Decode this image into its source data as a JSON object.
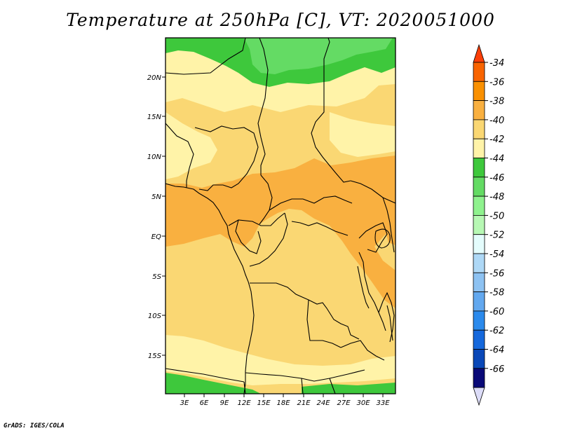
{
  "title": "Temperature at 250hPa [C], VT: 2020051000",
  "credit": "GrADS: IGES/COLA",
  "map": {
    "lat_labels": [
      "20N",
      "15N",
      "10N",
      "5N",
      "EQ",
      "5S",
      "10S",
      "15S"
    ],
    "lon_labels": [
      "3E",
      "6E",
      "9E",
      "12E",
      "15E",
      "18E",
      "21E",
      "24E",
      "27E",
      "30E",
      "33E"
    ]
  },
  "colorbar": {
    "labels": [
      "-34",
      "-36",
      "-38",
      "-40",
      "-42",
      "-44",
      "-46",
      "-48",
      "-50",
      "-52",
      "-54",
      "-56",
      "-58",
      "-60",
      "-62",
      "-64",
      "-66"
    ],
    "colors": {
      "top_triangle": "#fb3f08",
      "bins": [
        "#f96400",
        "#fa9000",
        "#f9b040",
        "#fad773",
        "#fff3a8",
        "#3ec83c",
        "#64db64",
        "#8ff28e",
        "#b7f8b4",
        "#e4fcfc",
        "#aed8f6",
        "#8dc2f2",
        "#62a8ef",
        "#2b8aec",
        "#1568dc",
        "#0a48b8",
        "#0a0a78"
      ],
      "bottom_triangle": "#dcdcf8"
    }
  },
  "field_colors": {
    "t36_38": "#f9b040",
    "t38_40": "#fad773",
    "t40_42": "#fff3a8",
    "t42_44": "#3ec83c",
    "t44_46": "#64db64",
    "t46_48": "#8ff28e"
  }
}
